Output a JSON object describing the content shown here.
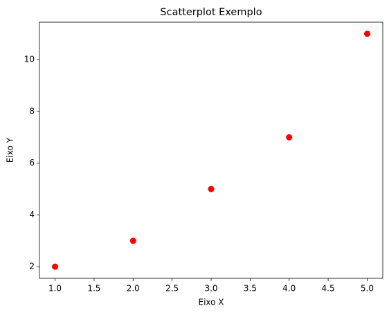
{
  "chart_data": {
    "type": "scatter",
    "title": "Scatterplot Exemplo",
    "x_label": "Eixo X",
    "y_label": "Eixo Y",
    "x": [
      1,
      2,
      3,
      4,
      5
    ],
    "values": [
      2,
      3,
      5,
      7,
      11
    ],
    "color": "#ff0000",
    "xlim": [
      0.8,
      5.2
    ],
    "xticks": [
      {
        "value": 1,
        "label": "1.0"
      },
      {
        "value": 1.5,
        "label": "1.5"
      },
      {
        "value": 2,
        "label": "2.0"
      },
      {
        "value": 2.5,
        "label": "2.5"
      },
      {
        "value": 3,
        "label": "3.0"
      },
      {
        "value": 3.5,
        "label": "3.5"
      },
      {
        "value": 4,
        "label": "4.0"
      },
      {
        "value": 4.5,
        "label": "4.5"
      },
      {
        "value": 5,
        "label": "5.0"
      }
    ],
    "ylim": [
      1.55,
      11.45
    ],
    "yticks": [
      2,
      4,
      6,
      8,
      10
    ],
    "grid": false
  }
}
